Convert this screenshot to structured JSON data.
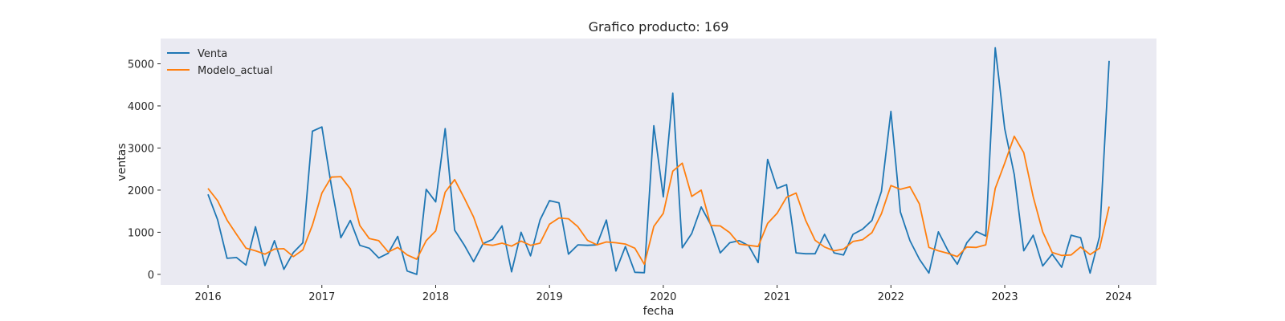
{
  "chart_data": {
    "type": "line",
    "title": "Grafico producto: 169",
    "xlabel": "fecha",
    "ylabel": "ventas",
    "x_start": "2016-01",
    "x_ticks": [
      "2016",
      "2017",
      "2018",
      "2019",
      "2020",
      "2021",
      "2022",
      "2023",
      "2024"
    ],
    "y_ticks": [
      0,
      1000,
      2000,
      3000,
      4000,
      5000
    ],
    "xlim": [
      "2015-08",
      "2024-05"
    ],
    "ylim": [
      -250,
      5600
    ],
    "grid": false,
    "legend": "upper-left",
    "background": "#eaeaf2",
    "series": [
      {
        "name": "Venta",
        "color": "#1f77b4",
        "values": [
          1900,
          1300,
          380,
          400,
          220,
          1130,
          210,
          800,
          120,
          520,
          750,
          3400,
          3500,
          2100,
          870,
          1280,
          690,
          620,
          390,
          500,
          900,
          80,
          0,
          2020,
          1720,
          3460,
          1050,
          700,
          300,
          730,
          830,
          1150,
          60,
          1000,
          440,
          1290,
          1750,
          1700,
          480,
          700,
          690,
          700,
          1290,
          80,
          660,
          50,
          40,
          3530,
          1840,
          4300,
          630,
          970,
          1600,
          1180,
          510,
          750,
          800,
          680,
          280,
          2730,
          2040,
          2130,
          510,
          490,
          490,
          950,
          510,
          460,
          950,
          1070,
          1280,
          1970,
          3870,
          1480,
          800,
          360,
          30,
          1010,
          570,
          240,
          750,
          1020,
          910,
          5380,
          3460,
          2370,
          560,
          930,
          200,
          480,
          170,
          930,
          870,
          30,
          900,
          5070
        ]
      },
      {
        "name": "Modelo_actual",
        "color": "#ff7f0e",
        "values": [
          2040,
          1750,
          1290,
          950,
          620,
          560,
          480,
          600,
          610,
          420,
          580,
          1170,
          1930,
          2310,
          2320,
          2030,
          1160,
          850,
          800,
          530,
          640,
          460,
          360,
          800,
          1030,
          1950,
          2250,
          1820,
          1360,
          720,
          690,
          740,
          670,
          790,
          690,
          740,
          1190,
          1340,
          1320,
          1130,
          810,
          700,
          770,
          750,
          720,
          620,
          240,
          1140,
          1450,
          2450,
          2640,
          1850,
          2000,
          1160,
          1150,
          990,
          720,
          690,
          660,
          1210,
          1450,
          1830,
          1930,
          1290,
          810,
          650,
          560,
          600,
          780,
          820,
          990,
          1440,
          2110,
          2020,
          2080,
          1670,
          640,
          560,
          500,
          420,
          650,
          640,
          700,
          2040,
          2640,
          3280,
          2890,
          1840,
          1010,
          520,
          450,
          460,
          650,
          470,
          620,
          1610
        ]
      }
    ]
  }
}
